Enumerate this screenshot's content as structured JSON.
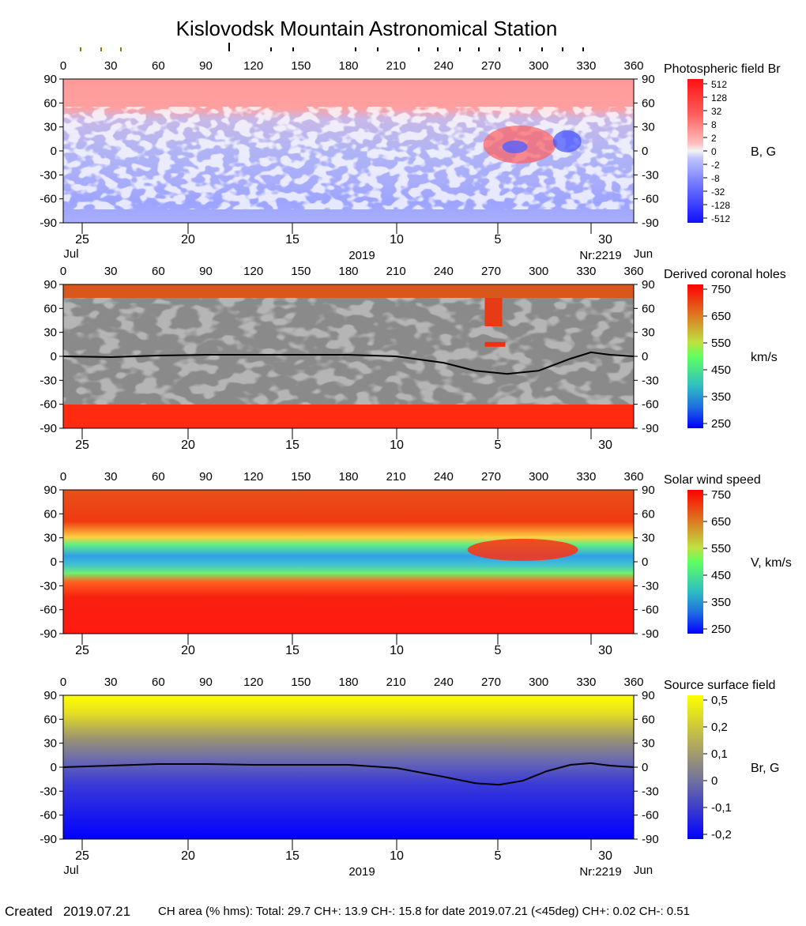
{
  "title": "Kislovodsk Mountain Astronomical Station",
  "footer": {
    "created_label": "Created",
    "created_date": "2019.07.21",
    "ch_text": "CH area (% hms): Total: 29.7 CH+: 13.9   CH-: 15.8 for date 2019.07.21 (<45deg) CH+: 0.02    CH-: 0.51"
  },
  "chart_data": [
    {
      "type": "heatmap",
      "title": "Photospheric field Br",
      "colorbar_unit": "B, G",
      "colorbar_ticks": [
        "512",
        "128",
        "32",
        "8",
        "2",
        "0",
        "-2",
        "-8",
        "-32",
        "-128",
        "-512"
      ],
      "colors": {
        "positive": "#ff2020",
        "negative": "#2030ff",
        "zero": "#f2f2f2"
      },
      "x_ticks": [
        0,
        30,
        60,
        90,
        120,
        150,
        180,
        210,
        240,
        270,
        300,
        330,
        360
      ],
      "y_ticks": [
        90,
        60,
        30,
        0,
        -30,
        -60,
        -90
      ],
      "xlim": [
        0,
        360
      ],
      "ylim": [
        -90,
        90
      ],
      "date_ticks": [
        "25",
        "20",
        "15",
        "10",
        "5",
        "30"
      ],
      "date_sublabels": {
        "left": "Jul",
        "center": "2019",
        "rotation": "Nr:2219",
        "right": "Jun"
      },
      "top_markers": "carrington day ticks"
    },
    {
      "type": "heatmap",
      "title": "Derived coronal holes",
      "colorbar_unit": "km/s",
      "colorbar_ticks": [
        "750",
        "650",
        "550",
        "450",
        "350",
        "250"
      ],
      "x_ticks": [
        0,
        30,
        60,
        90,
        120,
        150,
        180,
        210,
        240,
        270,
        300,
        330,
        360
      ],
      "y_ticks": [
        90,
        60,
        30,
        0,
        -30,
        -60,
        -90
      ],
      "xlim": [
        0,
        360
      ],
      "ylim": [
        -90,
        90
      ],
      "date_ticks": [
        "25",
        "20",
        "15",
        "10",
        "5",
        "30"
      ],
      "neutral_line": [
        [
          0,
          0
        ],
        [
          30,
          -1
        ],
        [
          60,
          1
        ],
        [
          90,
          2
        ],
        [
          120,
          2
        ],
        [
          150,
          2
        ],
        [
          180,
          2
        ],
        [
          210,
          0
        ],
        [
          240,
          -8
        ],
        [
          260,
          -18
        ],
        [
          280,
          -22
        ],
        [
          300,
          -18
        ],
        [
          320,
          -3
        ],
        [
          333,
          5
        ],
        [
          345,
          2
        ],
        [
          360,
          0
        ]
      ]
    },
    {
      "type": "heatmap",
      "title": "Solar wind speed",
      "colorbar_unit": "V, km/s",
      "colorbar_ticks": [
        "750",
        "650",
        "550",
        "450",
        "350",
        "250"
      ],
      "x_ticks": [
        0,
        30,
        60,
        90,
        120,
        150,
        180,
        210,
        240,
        270,
        300,
        330,
        360
      ],
      "y_ticks": [
        90,
        60,
        30,
        0,
        -30,
        -60,
        -90
      ],
      "xlim": [
        0,
        360
      ],
      "ylim": [
        -90,
        90
      ],
      "date_ticks": [
        "25",
        "20",
        "15",
        "10",
        "5",
        "30"
      ]
    },
    {
      "type": "heatmap",
      "title": "Source surface field",
      "colorbar_unit": "Br, G",
      "colorbar_ticks": [
        "0,5",
        "0,2",
        "0,1",
        "0",
        "-0,1",
        "-0,2"
      ],
      "x_ticks": [
        0,
        30,
        60,
        90,
        120,
        150,
        180,
        210,
        240,
        270,
        300,
        330,
        360
      ],
      "y_ticks": [
        90,
        60,
        30,
        0,
        -30,
        -60,
        -90
      ],
      "xlim": [
        0,
        360
      ],
      "ylim": [
        -90,
        90
      ],
      "date_ticks": [
        "25",
        "20",
        "15",
        "10",
        "5",
        "30"
      ],
      "date_sublabels": {
        "left": "Jul",
        "center": "2019",
        "rotation": "Nr:2219",
        "right": "Jun"
      },
      "neutral_line": [
        [
          0,
          0
        ],
        [
          30,
          2
        ],
        [
          60,
          4
        ],
        [
          90,
          4
        ],
        [
          120,
          3
        ],
        [
          150,
          3
        ],
        [
          180,
          3
        ],
        [
          210,
          -1
        ],
        [
          240,
          -12
        ],
        [
          260,
          -20
        ],
        [
          275,
          -22
        ],
        [
          290,
          -17
        ],
        [
          305,
          -5
        ],
        [
          320,
          3
        ],
        [
          333,
          5
        ],
        [
          345,
          2
        ],
        [
          360,
          0
        ]
      ]
    }
  ]
}
